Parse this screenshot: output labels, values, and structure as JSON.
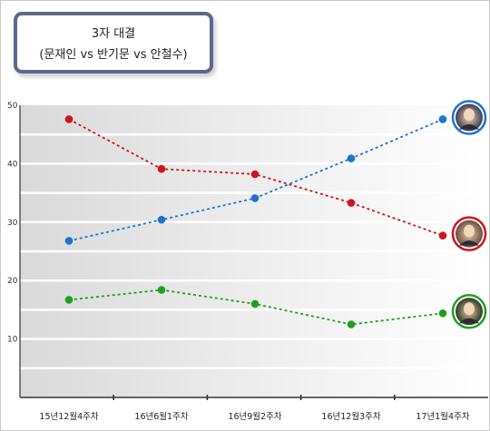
{
  "title": {
    "line1": "3자 대결",
    "line2": "(문재인 vs 반기문 vs 안철수)"
  },
  "chart_data": {
    "type": "line",
    "categories": [
      "15년12월4주차",
      "16년6월1주차",
      "16년9월2주차",
      "16년12월3주차",
      "17년1월4주차"
    ],
    "yticks": [
      10,
      20,
      30,
      40,
      50
    ],
    "ylim": [
      0,
      50
    ],
    "grid": true,
    "series": [
      {
        "values": [
          47.6,
          39.1,
          38.2,
          33.3,
          27.7
        ],
        "color": "#d0141e"
      },
      {
        "values": [
          26.8,
          30.4,
          34.1,
          40.9,
          47.6
        ],
        "color": "#1e73d2"
      },
      {
        "values": [
          16.7,
          18.4,
          16.0,
          12.5,
          14.4
        ],
        "color": "#1ea01e"
      }
    ],
    "portrait_icons": [
      "person-portrait-icon",
      "person-portrait-icon",
      "person-portrait-icon"
    ]
  }
}
